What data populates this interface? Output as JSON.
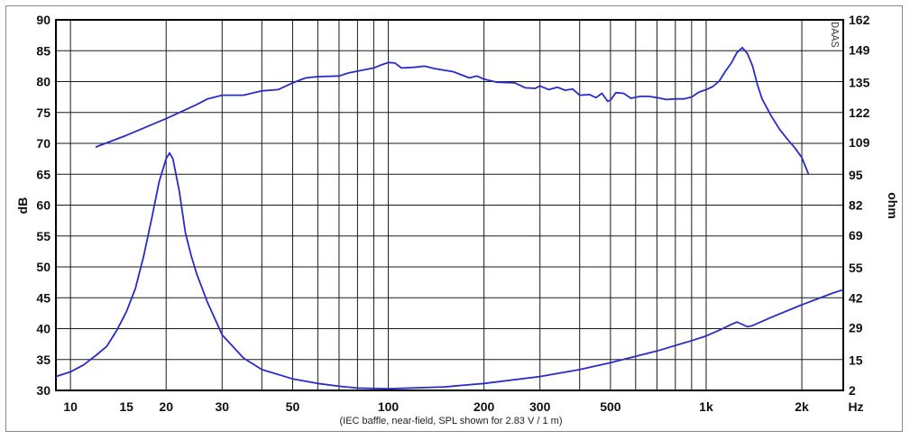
{
  "chart_data": {
    "type": "line",
    "x_scale": "log",
    "xlim": [
      9,
      2700
    ],
    "ylim": [
      30,
      90
    ],
    "y2lim": [
      2,
      162
    ],
    "grid": true,
    "ylabel": "dB",
    "y2label": "ohm",
    "xunit": "Hz",
    "note": "(IEC baffle, near-field, SPL shown for 2.83 V / 1 m)",
    "watermark": "DAAS",
    "x_ticks": [
      {
        "v": 10,
        "label": "10"
      },
      {
        "v": 15,
        "label": "15"
      },
      {
        "v": 20,
        "label": "20"
      },
      {
        "v": 30,
        "label": "30"
      },
      {
        "v": 50,
        "label": "50"
      },
      {
        "v": 100,
        "label": "100"
      },
      {
        "v": 200,
        "label": "200"
      },
      {
        "v": 300,
        "label": "300"
      },
      {
        "v": 500,
        "label": "500"
      },
      {
        "v": 1000,
        "label": "1k"
      },
      {
        "v": 2000,
        "label": "2k"
      }
    ],
    "y_ticks": [
      90,
      85,
      80,
      75,
      70,
      65,
      60,
      55,
      50,
      45,
      40,
      35,
      30
    ],
    "y2_ticks": [
      162,
      149,
      135,
      122,
      109,
      95,
      82,
      69,
      55,
      42,
      29,
      15,
      2
    ],
    "colors": {
      "curve": "#2b2bc8",
      "grid": "#1a1a1a",
      "frame": "#000000"
    },
    "series": [
      {
        "axis": "left",
        "points": [
          [
            12,
            69.4
          ],
          [
            15,
            71.3
          ],
          [
            20,
            74.0
          ],
          [
            25,
            76.3
          ],
          [
            27,
            77.2
          ],
          [
            30,
            77.8
          ],
          [
            35,
            77.8
          ],
          [
            40,
            78.5
          ],
          [
            45,
            78.7
          ],
          [
            50,
            79.8
          ],
          [
            55,
            80.6
          ],
          [
            60,
            80.8
          ],
          [
            70,
            80.9
          ],
          [
            75,
            81.4
          ],
          [
            80,
            81.7
          ],
          [
            90,
            82.2
          ],
          [
            95,
            82.7
          ],
          [
            100,
            83.1
          ],
          [
            105,
            83.0
          ],
          [
            110,
            82.2
          ],
          [
            120,
            82.3
          ],
          [
            130,
            82.5
          ],
          [
            140,
            82.1
          ],
          [
            160,
            81.6
          ],
          [
            180,
            80.6
          ],
          [
            190,
            80.9
          ],
          [
            200,
            80.4
          ],
          [
            220,
            79.9
          ],
          [
            250,
            79.8
          ],
          [
            270,
            79.0
          ],
          [
            290,
            78.9
          ],
          [
            300,
            79.3
          ],
          [
            320,
            78.7
          ],
          [
            340,
            79.1
          ],
          [
            360,
            78.6
          ],
          [
            380,
            78.8
          ],
          [
            400,
            77.8
          ],
          [
            430,
            77.9
          ],
          [
            450,
            77.4
          ],
          [
            470,
            78.1
          ],
          [
            490,
            76.8
          ],
          [
            500,
            77.0
          ],
          [
            520,
            78.2
          ],
          [
            550,
            78.1
          ],
          [
            580,
            77.3
          ],
          [
            620,
            77.6
          ],
          [
            660,
            77.6
          ],
          [
            700,
            77.4
          ],
          [
            750,
            77.1
          ],
          [
            800,
            77.2
          ],
          [
            850,
            77.2
          ],
          [
            900,
            77.5
          ],
          [
            950,
            78.3
          ],
          [
            1000,
            78.7
          ],
          [
            1050,
            79.2
          ],
          [
            1100,
            80.1
          ],
          [
            1150,
            81.7
          ],
          [
            1200,
            83.0
          ],
          [
            1250,
            84.7
          ],
          [
            1300,
            85.5
          ],
          [
            1350,
            84.5
          ],
          [
            1400,
            82.5
          ],
          [
            1450,
            79.5
          ],
          [
            1500,
            77.2
          ],
          [
            1600,
            74.5
          ],
          [
            1700,
            72.3
          ],
          [
            1800,
            70.7
          ],
          [
            1900,
            69.3
          ],
          [
            2000,
            67.7
          ],
          [
            2100,
            65.0
          ]
        ]
      },
      {
        "axis": "right",
        "points": [
          [
            9,
            8.0
          ],
          [
            10,
            10.0
          ],
          [
            11,
            13.0
          ],
          [
            12,
            17.0
          ],
          [
            13,
            21.0
          ],
          [
            14,
            28.0
          ],
          [
            15,
            36.0
          ],
          [
            16,
            46.0
          ],
          [
            17,
            60.0
          ],
          [
            18,
            76.0
          ],
          [
            19,
            92.0
          ],
          [
            20,
            102.0
          ],
          [
            20.5,
            104.5
          ],
          [
            21,
            102.0
          ],
          [
            22,
            88.0
          ],
          [
            23,
            70.0
          ],
          [
            24,
            60.0
          ],
          [
            25,
            52.0
          ],
          [
            27,
            40.0
          ],
          [
            30,
            26.0
          ],
          [
            35,
            16.0
          ],
          [
            40,
            11.0
          ],
          [
            50,
            7.0
          ],
          [
            60,
            5.0
          ],
          [
            70,
            3.8
          ],
          [
            80,
            3.0
          ],
          [
            100,
            2.7
          ],
          [
            150,
            3.5
          ],
          [
            200,
            5.0
          ],
          [
            300,
            8.0
          ],
          [
            400,
            11.0
          ],
          [
            500,
            14.0
          ],
          [
            700,
            19.0
          ],
          [
            900,
            23.5
          ],
          [
            1000,
            25.5
          ],
          [
            1100,
            28.0
          ],
          [
            1200,
            30.5
          ],
          [
            1250,
            31.5
          ],
          [
            1300,
            30.5
          ],
          [
            1350,
            29.5
          ],
          [
            1400,
            30.0
          ],
          [
            1600,
            33.5
          ],
          [
            2000,
            39.0
          ],
          [
            2500,
            44.0
          ],
          [
            2700,
            45.5
          ]
        ]
      }
    ]
  }
}
